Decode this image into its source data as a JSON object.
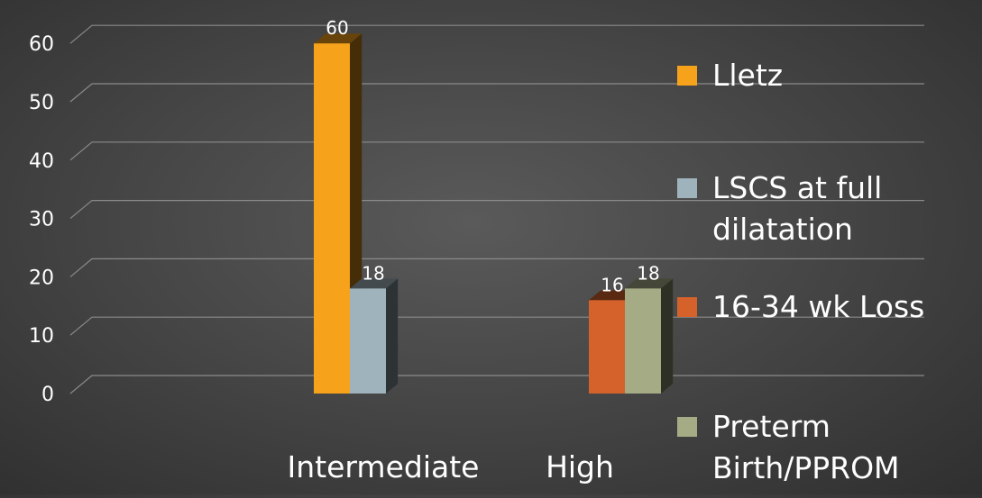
{
  "chart_data": {
    "type": "bar",
    "categories": [
      "Intermediate",
      "High"
    ],
    "series": [
      {
        "name": "Lletz",
        "values": [
          60,
          null
        ],
        "color": "#f7a21b"
      },
      {
        "name": "LSCS at full dilatation",
        "values": [
          18,
          null
        ],
        "color": "#9fb3bc"
      },
      {
        "name": "16-34 wk Loss",
        "values": [
          null,
          16
        ],
        "color": "#d4622a"
      },
      {
        "name": "Preterm Birth/PPROM",
        "values": [
          null,
          18
        ],
        "color": "#a5ac85"
      }
    ],
    "legend_labels": [
      [
        "Lletz"
      ],
      [
        "LSCS at full",
        "dilatation"
      ],
      [
        "16-34 wk Loss"
      ],
      [
        "Preterm",
        "Birth/PPROM"
      ]
    ],
    "ylim": [
      0,
      60
    ],
    "yticks": [
      0,
      10,
      20,
      30,
      40,
      50,
      60
    ],
    "grid": true,
    "legend_position": "right",
    "style": "3d-bar",
    "data_labels": true
  }
}
